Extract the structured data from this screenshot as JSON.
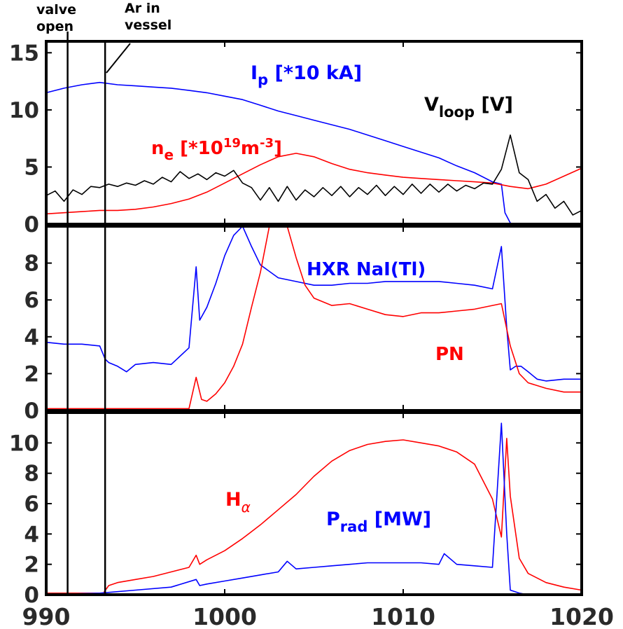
{
  "chart_data": [
    {
      "type": "line",
      "panel": "top",
      "xlim": [
        990,
        1020
      ],
      "ylim": [
        0,
        16
      ],
      "yticks": [
        "0",
        "5",
        "10",
        "15"
      ],
      "xticks": [],
      "series": [
        {
          "name": "Ip",
          "label_main": "I",
          "label_sub": "p",
          "label_tail": " [*10 kA]",
          "color": "#0000ff",
          "x": [
            990,
            991,
            992,
            993,
            994,
            995,
            996,
            997,
            998,
            999,
            1000,
            1001,
            1002,
            1003,
            1004,
            1005,
            1006,
            1007,
            1008,
            1009,
            1010,
            1011,
            1012,
            1013,
            1014,
            1015,
            1015.5,
            1015.7,
            1016,
            1016.2
          ],
          "y": [
            11.5,
            11.9,
            12.2,
            12.4,
            12.2,
            12.1,
            12.0,
            11.9,
            11.7,
            11.5,
            11.2,
            10.9,
            10.4,
            9.9,
            9.5,
            9.1,
            8.7,
            8.3,
            7.8,
            7.3,
            6.8,
            6.3,
            5.8,
            5.1,
            4.5,
            3.7,
            3.5,
            1.0,
            0.1,
            0
          ]
        },
        {
          "name": "ne",
          "label_main": "n",
          "label_sub": "e",
          "label_tail1": " [*10",
          "label_sup1": "19",
          "label_tail2": "m",
          "label_sup2": "-3",
          "label_tail3": "]",
          "color": "#ff0000",
          "x": [
            990,
            991,
            992,
            993,
            994,
            995,
            996,
            997,
            998,
            999,
            1000,
            1001,
            1002,
            1003,
            1004,
            1005,
            1006,
            1007,
            1008,
            1009,
            1010,
            1011,
            1012,
            1013,
            1014,
            1015,
            1016,
            1017,
            1018,
            1019,
            1020
          ],
          "y": [
            0.9,
            1.0,
            1.1,
            1.2,
            1.2,
            1.3,
            1.5,
            1.8,
            2.2,
            2.8,
            3.6,
            4.4,
            5.2,
            5.9,
            6.2,
            5.9,
            5.3,
            4.8,
            4.5,
            4.3,
            4.1,
            4.0,
            3.9,
            3.8,
            3.7,
            3.6,
            3.3,
            3.1,
            3.5,
            4.2,
            4.9
          ]
        },
        {
          "name": "Vloop",
          "label_main": "V",
          "label_sub": "loop",
          "label_tail": " [V]",
          "color": "#000000",
          "x": [
            990,
            990.5,
            991,
            991.5,
            992,
            992.5,
            993,
            993.5,
            994,
            994.5,
            995,
            995.5,
            996,
            996.5,
            997,
            997.5,
            998,
            998.5,
            999,
            999.5,
            1000,
            1000.5,
            1001,
            1001.5,
            1002,
            1002.5,
            1003,
            1003.5,
            1004,
            1004.5,
            1005,
            1005.5,
            1006,
            1006.5,
            1007,
            1007.5,
            1008,
            1008.5,
            1009,
            1009.5,
            1010,
            1010.5,
            1011,
            1011.5,
            1012,
            1012.5,
            1013,
            1013.5,
            1014,
            1014.5,
            1015,
            1015.5,
            1016,
            1016.5,
            1017,
            1017.5,
            1018,
            1018.5,
            1019,
            1019.5,
            1020
          ],
          "y": [
            2.5,
            2.9,
            2.0,
            3.0,
            2.6,
            3.3,
            3.2,
            3.5,
            3.3,
            3.6,
            3.4,
            3.8,
            3.5,
            4.1,
            3.7,
            4.6,
            4.0,
            4.4,
            3.9,
            4.5,
            4.2,
            4.7,
            3.6,
            3.2,
            2.1,
            3.2,
            2.0,
            3.3,
            2.1,
            3.0,
            2.4,
            3.2,
            2.5,
            3.3,
            2.4,
            3.2,
            2.6,
            3.4,
            2.5,
            3.3,
            2.6,
            3.5,
            2.7,
            3.5,
            2.8,
            3.5,
            2.9,
            3.4,
            3.1,
            3.6,
            3.5,
            4.8,
            7.8,
            4.5,
            3.9,
            2.0,
            2.6,
            1.4,
            2.0,
            0.8,
            1.2
          ]
        }
      ]
    },
    {
      "type": "line",
      "panel": "middle",
      "xlim": [
        990,
        1020
      ],
      "ylim": [
        0,
        10
      ],
      "yticks": [
        "0",
        "2",
        "4",
        "6",
        "8"
      ],
      "xticks": [],
      "series": [
        {
          "name": "HXR NaI(Tl)",
          "label_main": "HXR NaI(Tl)",
          "color": "#0000ff",
          "x": [
            990,
            991,
            992,
            993,
            993.3,
            993.5,
            994,
            994.5,
            995,
            996,
            997,
            998,
            998.4,
            998.6,
            999,
            999.5,
            1000,
            1000.5,
            1001,
            1001.5,
            1002,
            1003,
            1004,
            1005,
            1006,
            1007,
            1008,
            1009,
            1010,
            1011,
            1012,
            1013,
            1014,
            1015,
            1015.5,
            1015.8,
            1016,
            1016.3,
            1016.6,
            1017,
            1017.5,
            1018,
            1019,
            1020
          ],
          "y": [
            3.7,
            3.6,
            3.6,
            3.5,
            2.8,
            2.6,
            2.4,
            2.1,
            2.5,
            2.6,
            2.5,
            3.4,
            7.8,
            4.9,
            5.6,
            6.9,
            8.4,
            9.5,
            10.0,
            8.9,
            7.9,
            7.2,
            7.0,
            6.8,
            6.8,
            6.9,
            6.9,
            7.0,
            7.0,
            7.0,
            7.0,
            6.9,
            6.8,
            6.6,
            8.9,
            4.5,
            2.2,
            2.4,
            2.4,
            2.1,
            1.7,
            1.6,
            1.7,
            1.7
          ]
        },
        {
          "name": "PN",
          "label_main": "PN",
          "color": "#ff0000",
          "x": [
            990,
            993,
            996,
            998,
            998.4,
            998.7,
            999,
            999.5,
            1000,
            1000.5,
            1001,
            1001.5,
            1002,
            1002.5,
            1003,
            1003.5,
            1004,
            1004.5,
            1005,
            1006,
            1007,
            1008,
            1009,
            1010,
            1011,
            1012,
            1013,
            1014,
            1015,
            1015.5,
            1016,
            1016.5,
            1017,
            1018,
            1019,
            1020
          ],
          "y": [
            0.1,
            0.1,
            0.1,
            0.1,
            1.8,
            0.6,
            0.5,
            0.9,
            1.5,
            2.4,
            3.6,
            5.6,
            7.5,
            10.0,
            10.0,
            10.0,
            8.3,
            6.8,
            6.1,
            5.7,
            5.8,
            5.5,
            5.2,
            5.1,
            5.3,
            5.3,
            5.4,
            5.5,
            5.7,
            5.8,
            3.5,
            2.0,
            1.5,
            1.2,
            1.0,
            1.0
          ]
        }
      ]
    },
    {
      "type": "line",
      "panel": "bottom",
      "xlim": [
        990,
        1020
      ],
      "ylim": [
        0,
        12
      ],
      "yticks": [
        "0",
        "2",
        "4",
        "6",
        "8",
        "10"
      ],
      "xticks": [
        "990",
        "1000",
        "1010",
        "1020"
      ],
      "series": [
        {
          "name": "Halpha",
          "label_main": "H",
          "label_sub": "α",
          "color": "#ff0000",
          "x": [
            990,
            992,
            993.2,
            993.5,
            994,
            995,
            996,
            997,
            998,
            998.4,
            998.6,
            999,
            1000,
            1001,
            1002,
            1003,
            1004,
            1005,
            1006,
            1007,
            1008,
            1009,
            1010,
            1011,
            1012,
            1013,
            1014,
            1015,
            1015.5,
            1015.8,
            1016,
            1016.5,
            1017,
            1018,
            1019,
            1020
          ],
          "y": [
            0.1,
            0.1,
            0.1,
            0.6,
            0.8,
            1.0,
            1.2,
            1.5,
            1.8,
            2.6,
            2.0,
            2.3,
            2.9,
            3.7,
            4.6,
            5.6,
            6.6,
            7.8,
            8.8,
            9.5,
            9.9,
            10.1,
            10.2,
            10.0,
            9.8,
            9.4,
            8.6,
            6.3,
            3.8,
            10.3,
            6.5,
            2.4,
            1.4,
            0.8,
            0.5,
            0.3
          ]
        },
        {
          "name": "Prad",
          "label_main": "P",
          "label_sub": "rad",
          "label_tail": " [MW]",
          "color": "#0000ff",
          "x": [
            990,
            993,
            995,
            997,
            998.4,
            998.6,
            999,
            1000,
            1001,
            1002,
            1003,
            1003.5,
            1004,
            1005,
            1006,
            1007,
            1008,
            1009,
            1010,
            1011,
            1012,
            1012.3,
            1013,
            1014,
            1015,
            1015.5,
            1015.8,
            1016,
            1016.5,
            1017,
            1018,
            1020
          ],
          "y": [
            0,
            0.1,
            0.3,
            0.5,
            1.0,
            0.6,
            0.7,
            0.9,
            1.1,
            1.3,
            1.5,
            2.2,
            1.7,
            1.8,
            1.9,
            2.0,
            2.1,
            2.1,
            2.1,
            2.1,
            2.0,
            2.7,
            2.0,
            1.9,
            1.8,
            11.3,
            4.0,
            0.3,
            0.1,
            0,
            0,
            0
          ]
        }
      ]
    }
  ],
  "annotations": {
    "valve_line1": "valve",
    "valve_line2": "open",
    "ar_line1": "Ar in",
    "ar_line2": "vessel",
    "valve_time": 991.2,
    "ar_time": 993.3
  }
}
